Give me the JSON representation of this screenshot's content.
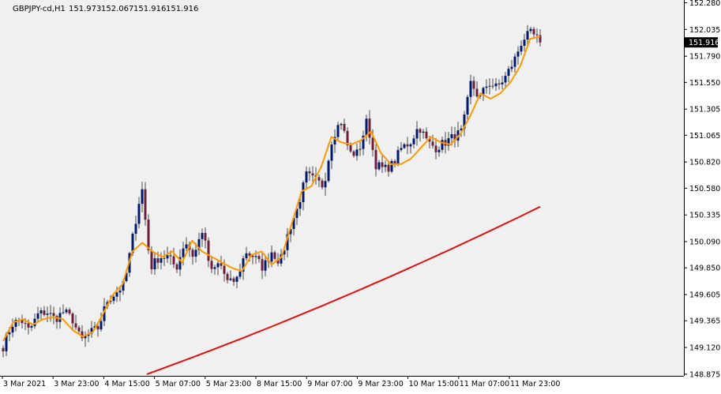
{
  "header": {
    "symbol": "GBPJPY-cd,H1",
    "open": "151.973",
    "high": "152.067",
    "low": "151.916",
    "close": "151.916"
  },
  "price_tag": "151.916",
  "colors": {
    "background": "#f0f0f0",
    "bull_body": "#001a6e",
    "bear_body": "#6b1f3a",
    "wick": "#4a4a4a",
    "fast_ma": "#ff9900",
    "slow_ma": "#e01010",
    "axis": "#000000",
    "price_tag_bg": "#000000",
    "price_tag_text": "#ffffff"
  },
  "chart_data": {
    "type": "candlestick",
    "title": "GBPJPY-cd,H1",
    "y_ticks": [
      "152.280",
      "152.035",
      "151.790",
      "151.550",
      "151.305",
      "151.065",
      "150.820",
      "150.580",
      "150.335",
      "150.090",
      "149.850",
      "149.605",
      "149.365",
      "149.120",
      "148.875"
    ],
    "x_ticks": [
      "3 Mar 2021",
      "3 Mar 23:00",
      "4 Mar 15:00",
      "5 Mar 07:00",
      "5 Mar 23:00",
      "8 Mar 15:00",
      "9 Mar 07:00",
      "9 Mar 23:00",
      "10 Mar 15:00",
      "11 Mar 07:00",
      "11 Mar 23:00"
    ],
    "ylim": [
      148.86,
      152.305
    ],
    "grid": false,
    "close_anchors": [
      149.13,
      149.33,
      149.38,
      149.27,
      149.42,
      149.45,
      149.38,
      149.45,
      149.38,
      149.18,
      149.25,
      149.3,
      149.55,
      149.62,
      149.7,
      150.15,
      150.6,
      149.85,
      149.95,
      149.95,
      149.85,
      150.1,
      149.95,
      150.2,
      149.8,
      149.9,
      149.7,
      149.75,
      150.0,
      149.95,
      149.85,
      150.0,
      149.9,
      150.2,
      150.4,
      150.7,
      150.65,
      150.6,
      151.05,
      151.2,
      150.9,
      150.9,
      151.2,
      150.8,
      150.75,
      150.8,
      150.95,
      151.0,
      151.15,
      151.0,
      150.95,
      151.0,
      151.05,
      151.1,
      151.55,
      151.4,
      151.55,
      151.5,
      151.6,
      151.75,
      151.95,
      152.0,
      151.92
    ],
    "fast_ma_anchors": [
      149.18,
      149.35,
      149.38,
      149.33,
      149.38,
      149.4,
      149.38,
      149.28,
      149.22,
      149.26,
      149.42,
      149.6,
      149.7,
      150.0,
      150.08,
      150.0,
      149.95,
      150.0,
      149.9,
      150.1,
      150.0,
      149.95,
      149.9,
      149.85,
      149.82,
      149.97,
      150.0,
      149.88,
      149.95,
      150.25,
      150.55,
      150.6,
      150.78,
      151.05,
      151.0,
      150.98,
      151.02,
      151.1,
      150.9,
      150.8,
      150.8,
      150.85,
      150.95,
      151.05,
      151.0,
      150.98,
      151.08,
      151.25,
      151.45,
      151.4,
      151.45,
      151.55,
      151.7,
      151.95,
      151.97
    ],
    "slow_ma": {
      "start": 148.875,
      "end": 150.41
    },
    "last_close": 151.916
  }
}
